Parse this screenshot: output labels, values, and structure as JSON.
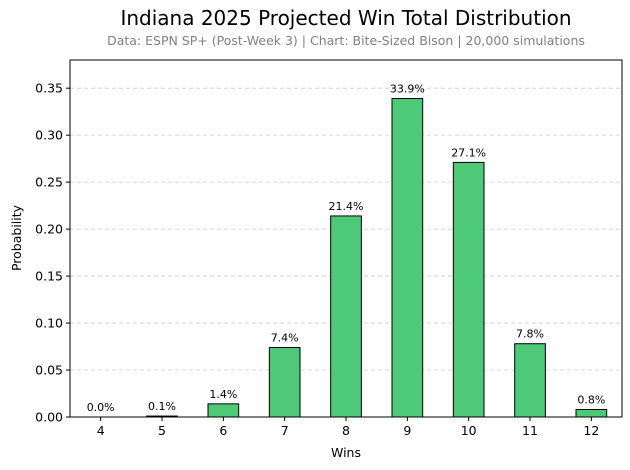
{
  "chart_data": {
    "type": "bar",
    "title": "Indiana 2025 Projected Win Total Distribution",
    "subtitle": "Data: ESPN SP+ (Post-Week 3) | Chart: Bite-Sized Bison | 20,000 simulations",
    "xlabel": "Wins",
    "ylabel": "Probability",
    "categories": [
      "4",
      "5",
      "6",
      "7",
      "8",
      "9",
      "10",
      "11",
      "12"
    ],
    "values": [
      0.0,
      0.001,
      0.014,
      0.074,
      0.214,
      0.339,
      0.271,
      0.078,
      0.008
    ],
    "data_labels": [
      "0.0%",
      "0.1%",
      "1.4%",
      "7.4%",
      "21.4%",
      "33.9%",
      "27.1%",
      "7.8%",
      "0.8%"
    ],
    "ylim": [
      0,
      0.38
    ],
    "yticks": [
      "0.00",
      "0.05",
      "0.10",
      "0.15",
      "0.20",
      "0.25",
      "0.30",
      "0.35"
    ],
    "ytick_values": [
      0,
      0.05,
      0.1,
      0.15,
      0.2,
      0.25,
      0.3,
      0.35
    ],
    "grid": "y-dashed",
    "bar_color": "#4ec978",
    "edge_color": "#000000"
  }
}
